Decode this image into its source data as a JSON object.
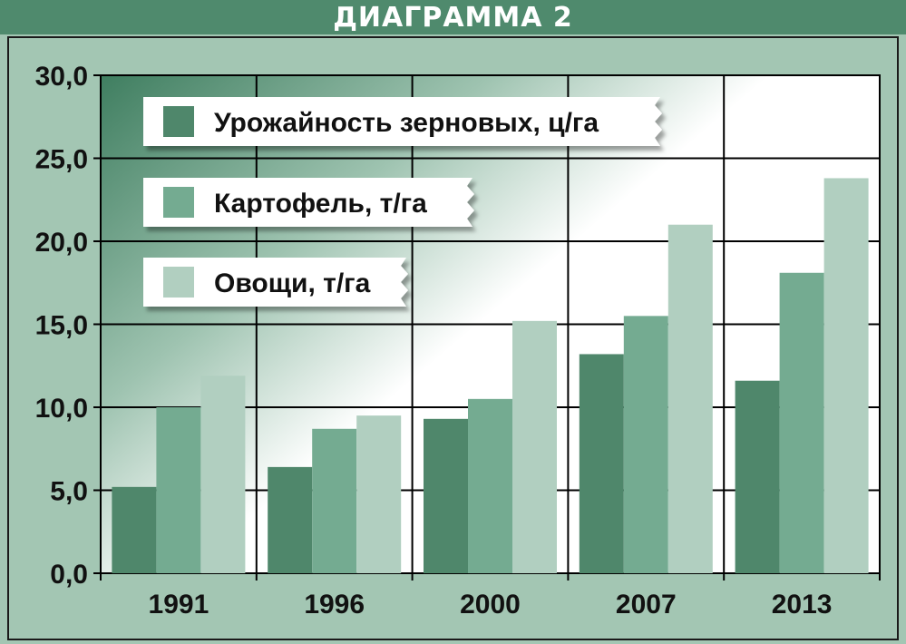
{
  "title": "ДИАГРАММА 2",
  "colors": {
    "frame_bg": "#a3c6b3",
    "title_bg": "#4f8a6d",
    "series": [
      "#4f876b",
      "#74ab91",
      "#b1cfc0"
    ]
  },
  "chart_data": {
    "type": "bar",
    "categories": [
      "1991",
      "1996",
      "2000",
      "2007",
      "2013"
    ],
    "series": [
      {
        "name": "Урожайность зерновых, ц/га",
        "values": [
          5.2,
          6.4,
          9.3,
          13.2,
          11.6
        ]
      },
      {
        "name": "Картофель, т/га",
        "values": [
          10.0,
          8.7,
          10.5,
          15.5,
          18.1
        ]
      },
      {
        "name": "Овощи, т/га",
        "values": [
          11.9,
          9.5,
          15.2,
          21.0,
          23.8
        ]
      }
    ],
    "ylim": [
      0,
      30
    ],
    "yticks": [
      "0,0",
      "5,0",
      "10,0",
      "15,0",
      "20,0",
      "25,0",
      "30,0"
    ],
    "grid": true,
    "legend_position": "top-left"
  }
}
